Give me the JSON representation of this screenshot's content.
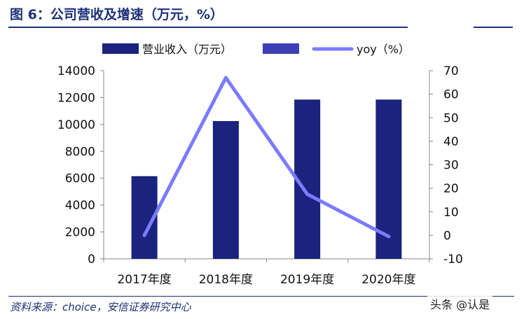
{
  "figure": {
    "title": "图 6：公司营收及增速（万元，%）",
    "source": "资料来源：choice，安信证券研究中心",
    "watermark": "头条 @认是"
  },
  "colors": {
    "bar": "#1a237e",
    "legend_swatch_2": "#3f3fb8",
    "line": "#7b7bff",
    "title": "#1c3178"
  },
  "chart_data": {
    "type": "bar",
    "categories": [
      "2017年度",
      "2018年度",
      "2019年度",
      "2020年度"
    ],
    "series": [
      {
        "name": "营业收入（万元）",
        "type": "bar",
        "axis": "left",
        "values": [
          6150,
          10250,
          11850,
          11850
        ]
      },
      {
        "name": "yoy（%）",
        "type": "line",
        "axis": "right",
        "values": [
          0,
          67,
          17.5,
          -0.5
        ]
      }
    ],
    "legend": [
      "营业收入（万元）",
      "",
      "yoy（%）"
    ],
    "y_left": {
      "lim": [
        0,
        14000
      ],
      "ticks": [
        0,
        2000,
        4000,
        6000,
        8000,
        10000,
        12000,
        14000
      ]
    },
    "y_right": {
      "lim": [
        -10,
        70
      ],
      "ticks": [
        -10,
        0,
        10,
        20,
        30,
        40,
        50,
        60,
        70
      ]
    },
    "legend_position": "top",
    "grid": false
  }
}
